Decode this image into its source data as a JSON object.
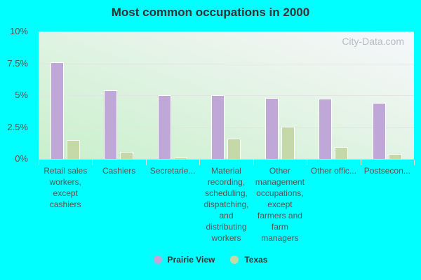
{
  "chart_data": {
    "type": "bar",
    "title": "Most common occupations in 2000",
    "xlabel": "",
    "ylabel": "",
    "ylim": [
      0,
      10
    ],
    "yticks": [
      "0%",
      "2.5%",
      "5%",
      "7.5%",
      "10%"
    ],
    "grid": true,
    "legend_position": "bottom",
    "categories": [
      "Retail sales workers, except cashiers",
      "Cashiers",
      "Secretarie...",
      "Material recording, scheduling, dispatching, and distributing workers",
      "Other management occupations, except farmers and farm managers",
      "Other offic...",
      "Postsecon..."
    ],
    "category_labels_display": [
      "Retail sales\nworkers,\nexcept\ncashiers",
      "Cashiers",
      "Secretarie...",
      "Material\nrecording,\nscheduling,\ndispatching,\nand\ndistributing\nworkers",
      "Other\nmanagement\noccupations,\nexcept\nfarmers and\nfarm\nmanagers",
      "Other offic...",
      "Postsecon..."
    ],
    "series": [
      {
        "name": "Prairie View",
        "color": "#bfa8d8",
        "values": [
          7.6,
          5.4,
          5.0,
          5.0,
          4.8,
          4.7,
          4.4
        ]
      },
      {
        "name": "Texas",
        "color": "#c4d8a8",
        "values": [
          1.5,
          0.55,
          0.1,
          1.6,
          2.55,
          0.95,
          0.4
        ]
      }
    ],
    "watermark": "City-Data.com"
  }
}
